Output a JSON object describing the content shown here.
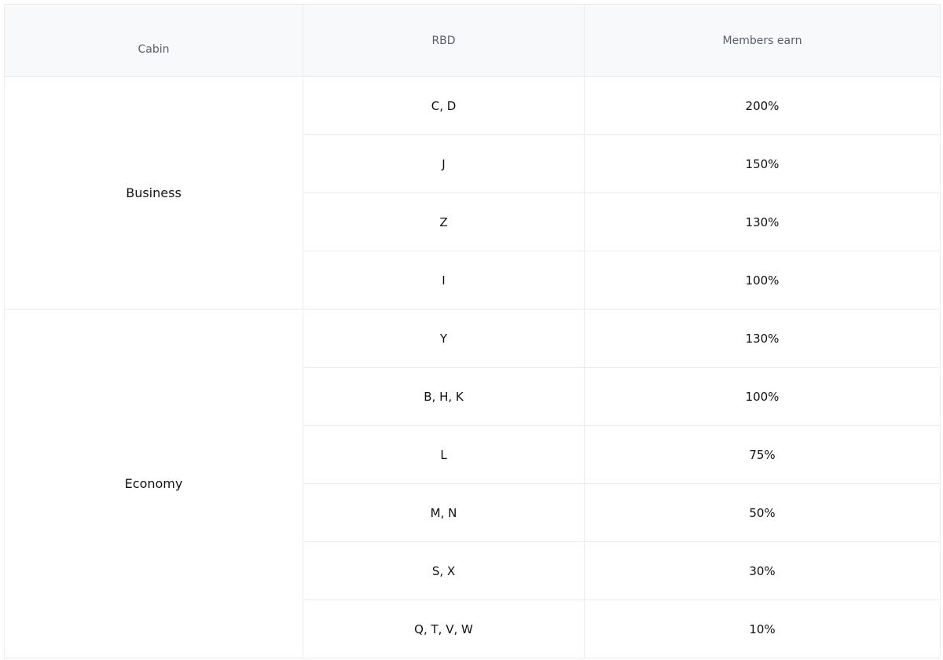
{
  "headers": {
    "cabin": "Cabin",
    "rbd": "RBD",
    "earn": "Members earn"
  },
  "groups": [
    {
      "cabin": "Business",
      "rows": [
        {
          "rbd": "C, D",
          "earn": "200%"
        },
        {
          "rbd": "J",
          "earn": "150%"
        },
        {
          "rbd": "Z",
          "earn": "130%"
        },
        {
          "rbd": "I",
          "earn": "100%"
        }
      ]
    },
    {
      "cabin": "Economy",
      "rows": [
        {
          "rbd": "Y",
          "earn": "130%"
        },
        {
          "rbd": "B, H, K",
          "earn": "100%"
        },
        {
          "rbd": "L",
          "earn": "75%"
        },
        {
          "rbd": "M, N",
          "earn": "50%"
        },
        {
          "rbd": "S, X",
          "earn": "30%"
        },
        {
          "rbd": "Q, T, V, W",
          "earn": "10%"
        }
      ]
    }
  ]
}
